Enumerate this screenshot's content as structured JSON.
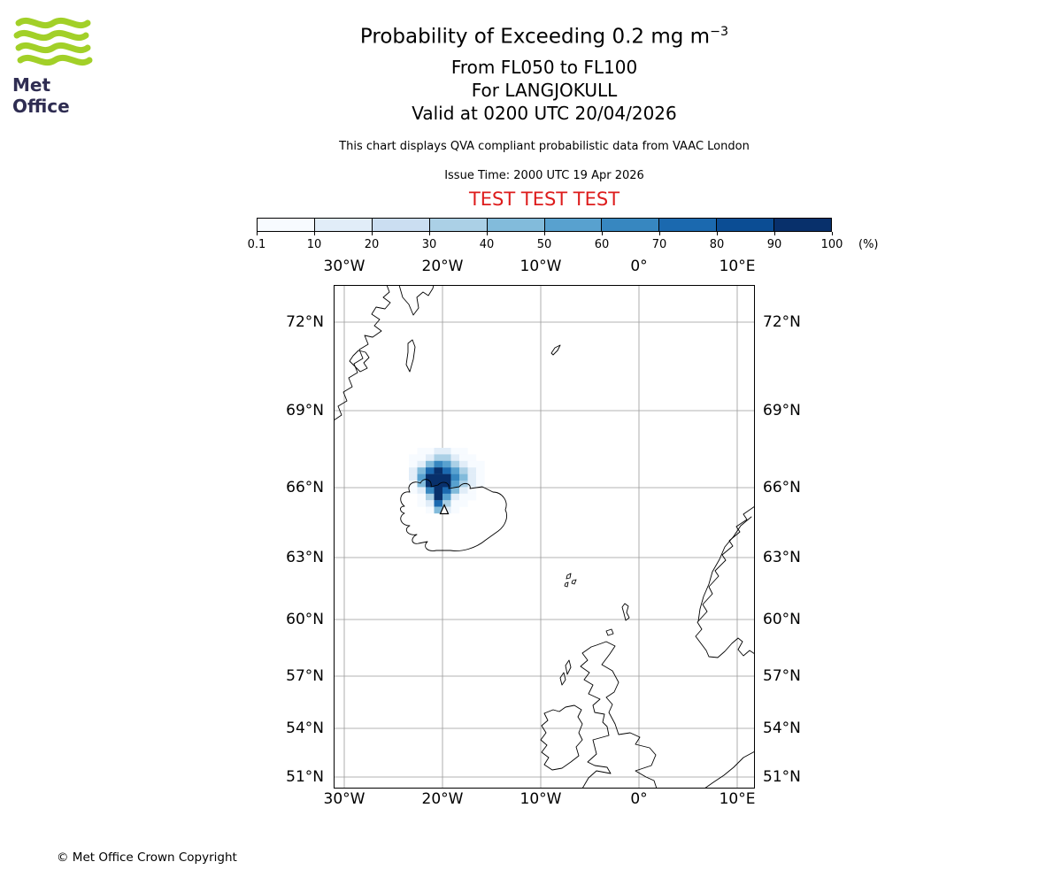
{
  "header": {
    "logo_text": "Met Office",
    "title_text": "Probability of Exceeding 0.2 mg m",
    "title_sup": "−3",
    "flight_levels": "From FL050 to FL100",
    "volcano_line": "For LANGJOKULL",
    "valid_line": "Valid at 0200 UTC 20/04/2026",
    "description": "This chart displays QVA compliant probabilistic data from VAAC London",
    "issue_time": "Issue Time: 2000 UTC 19 Apr 2026",
    "test_banner": "TEST TEST TEST"
  },
  "colorbar": {
    "tick_labels": [
      "0.1",
      "10",
      "20",
      "30",
      "40",
      "50",
      "60",
      "70",
      "80",
      "90",
      "100"
    ],
    "unit_label": "(%)"
  },
  "map": {
    "lon_labels": [
      "30°W",
      "20°W",
      "10°W",
      "0°",
      "10°E"
    ],
    "lat_labels": [
      "72°N",
      "69°N",
      "66°N",
      "63°N",
      "60°N",
      "57°N",
      "54°N",
      "51°N"
    ]
  },
  "footer": {
    "copyright": "© Met Office Crown Copyright"
  },
  "colors": {
    "logo_green": "#a2d028",
    "logo_text": "#2f2d52",
    "test_red": "#dd1c1c",
    "gridline_gray": "#9a9a9a"
  },
  "chart_data": {
    "type": "heatmap",
    "title": "Probability of Exceeding 0.2 mg m−3, FL050 to FL100, LANGJOKULL, valid 0200 UTC 20/04/2026",
    "units": "%",
    "legend_position": "top",
    "colorbar": {
      "thresholds": [
        0.1,
        10,
        20,
        30,
        40,
        50,
        60,
        70,
        80,
        90,
        100
      ],
      "colors": [
        "#f7fbff",
        "#e1edf8",
        "#cbdef1",
        "#abd0e6",
        "#82bbdb",
        "#58a1cf",
        "#3787c0",
        "#1b69af",
        "#0b4d94",
        "#08306b"
      ]
    },
    "axes": {
      "lon_ticks": [
        "30°W",
        "20°W",
        "10°W",
        "0°",
        "10°E"
      ],
      "lat_ticks": [
        "72°N",
        "69°N",
        "66°N",
        "63°N",
        "60°N",
        "57°N",
        "54°N",
        "51°N"
      ],
      "grid": true
    },
    "volcano_marker": {
      "name": "LANGJOKULL",
      "symbol": "triangle"
    },
    "grid": {
      "description": "Exceedance probability (%) per model grid cell over Iceland; rows north to south",
      "values": [
        [
          0,
          2,
          5,
          15,
          15,
          5,
          2,
          0,
          0
        ],
        [
          2,
          5,
          15,
          35,
          30,
          15,
          5,
          2,
          0
        ],
        [
          5,
          15,
          45,
          65,
          55,
          35,
          15,
          5,
          2
        ],
        [
          15,
          45,
          75,
          95,
          75,
          55,
          35,
          15,
          5
        ],
        [
          15,
          55,
          95,
          100,
          95,
          65,
          45,
          15,
          5
        ],
        [
          5,
          45,
          95,
          100,
          95,
          55,
          35,
          15,
          2
        ],
        [
          2,
          15,
          65,
          100,
          75,
          45,
          15,
          5,
          0
        ],
        [
          0,
          5,
          35,
          95,
          55,
          15,
          5,
          2,
          0
        ],
        [
          0,
          2,
          15,
          75,
          35,
          5,
          2,
          0,
          0
        ],
        [
          0,
          0,
          5,
          45,
          15,
          2,
          0,
          0,
          0
        ]
      ]
    }
  }
}
